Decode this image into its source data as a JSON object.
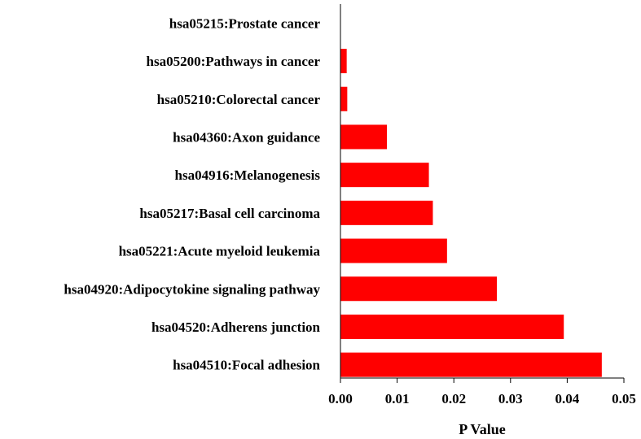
{
  "chart_data": {
    "type": "bar",
    "orientation": "horizontal",
    "title": "",
    "xlabel": "P Value",
    "ylabel": "",
    "xlim": [
      0,
      0.05
    ],
    "x_ticks": [
      "0.00",
      "0.01",
      "0.02",
      "0.03",
      "0.04",
      "0.05"
    ],
    "grid": false,
    "bar_color": "#ff0000",
    "categories": [
      "hsa05215:Prostate cancer",
      "hsa05200:Pathways in cancer",
      "hsa05210:Colorectal cancer",
      "hsa04360:Axon guidance",
      "hsa04916:Melanogenesis",
      "hsa05217:Basal cell carcinoma",
      "hsa05221:Acute myeloid leukemia",
      "hsa04920:Adipocytokine signaling pathway",
      "hsa04520:Adherens junction",
      "hsa04510:Focal adhesion"
    ],
    "values": [
      0.0,
      0.0011,
      0.0012,
      0.0082,
      0.0156,
      0.0163,
      0.0188,
      0.0276,
      0.0394,
      0.0461
    ]
  }
}
